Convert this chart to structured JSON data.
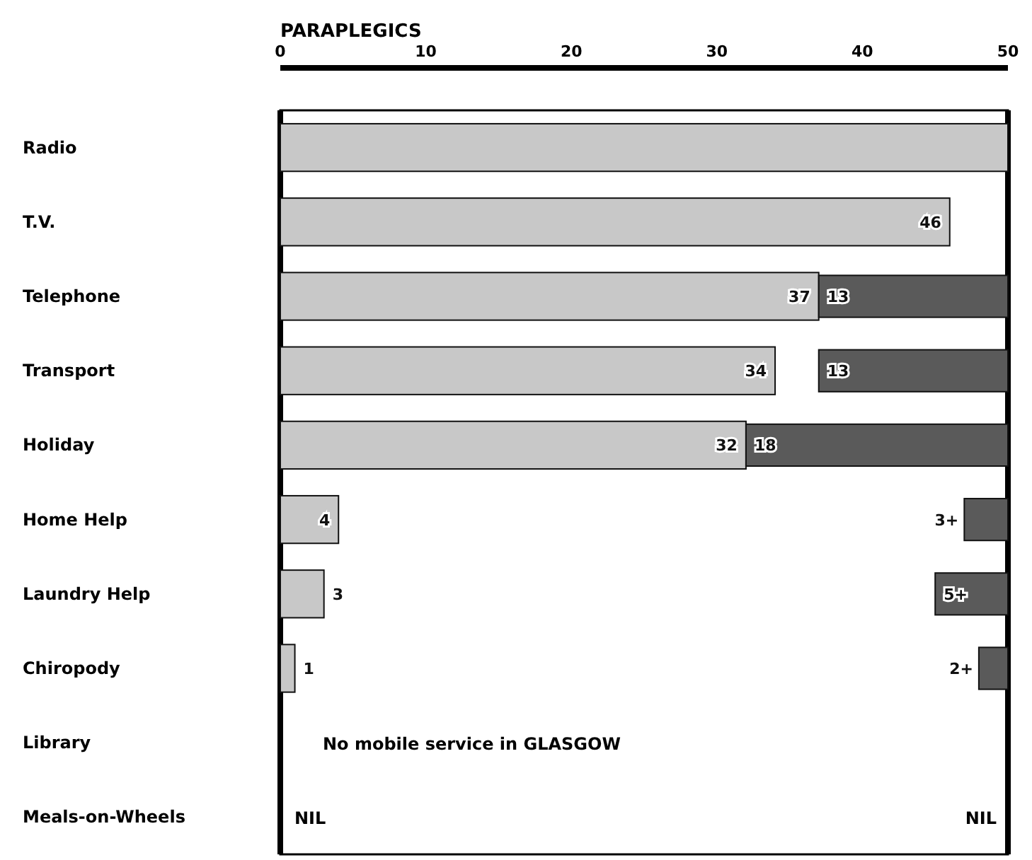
{
  "chart_data": {
    "type": "bar",
    "orientation": "horizontal",
    "xlabel": "PARAPLEGICS",
    "categories": [
      "Radio",
      "T.V.",
      "Telephone",
      "Transport",
      "Holiday",
      "Home Help",
      "Laundry Help",
      "Chiropody",
      "Library",
      "Meals-on-Wheels"
    ],
    "series": [
      {
        "color": "#c8c8c8",
        "values": [
          50,
          46,
          37,
          34,
          32,
          4,
          3,
          1,
          null,
          null
        ],
        "value_labels": [
          null,
          "46",
          "37",
          "34",
          "32",
          "4",
          "3",
          "1",
          null,
          null
        ]
      },
      {
        "color": "#5a5a5a",
        "values": [
          null,
          null,
          13,
          13,
          18,
          3,
          5,
          2,
          null,
          null
        ],
        "base": [
          null,
          null,
          37,
          37,
          32,
          47,
          45,
          48,
          null,
          null
        ],
        "value_labels": [
          null,
          null,
          "13",
          "13",
          "18",
          "3+",
          "5+",
          "2+",
          null,
          null
        ]
      }
    ],
    "xlim": [
      0,
      50
    ],
    "xticks": [
      0,
      10,
      20,
      30,
      40,
      50
    ],
    "grid": false,
    "annotations": [
      "No mobile service in GLASGOW",
      "NIL",
      "NIL"
    ]
  }
}
